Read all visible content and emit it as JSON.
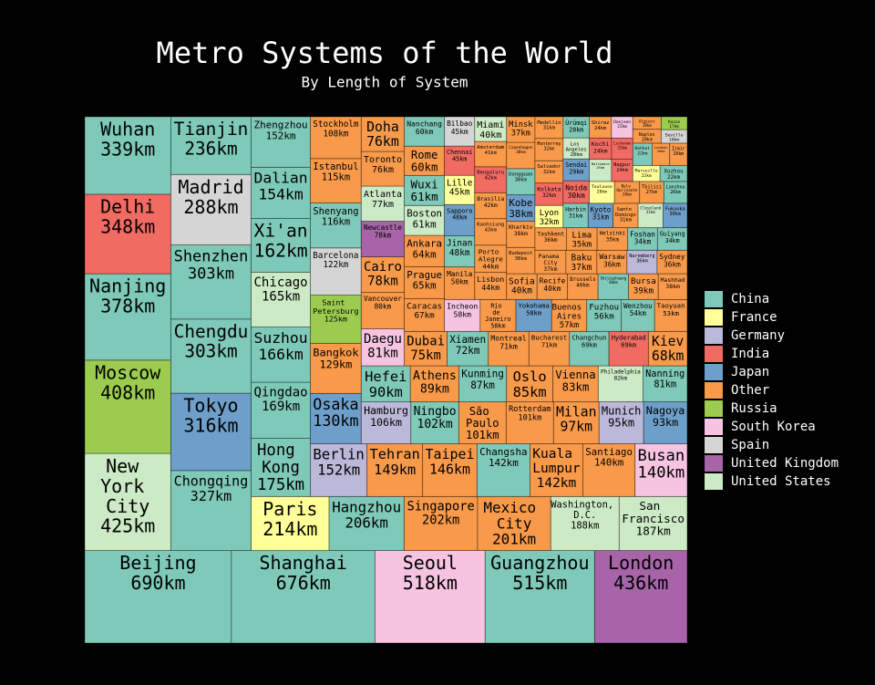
{
  "chart_data": {
    "type": "treemap",
    "title": "Metro Systems of the World",
    "subtitle": "By Length of System",
    "legend": [
      {
        "name": "China",
        "color": "#7fc9b9"
      },
      {
        "name": "France",
        "color": "#ffff99"
      },
      {
        "name": "Germany",
        "color": "#bcb8d9"
      },
      {
        "name": "India",
        "color": "#f26b63"
      },
      {
        "name": "Japan",
        "color": "#6e9fca"
      },
      {
        "name": "Other",
        "color": "#f99a4a"
      },
      {
        "name": "Russia",
        "color": "#9ccc4f"
      },
      {
        "name": "South Korea",
        "color": "#f6c4e0"
      },
      {
        "name": "Spain",
        "color": "#d5d5d5"
      },
      {
        "name": "United Kingdom",
        "color": "#a764a8"
      },
      {
        "name": "United States",
        "color": "#cdeac6"
      }
    ],
    "categories": [
      "Beijing",
      "Shanghai",
      "Seoul",
      "Guangzhou",
      "London",
      "New York City",
      "Moscow",
      "Nanjing",
      "Delhi",
      "Wuhan",
      "Chongqing",
      "Tokyo",
      "Chengdu",
      "Shenzhen",
      "Madrid",
      "Tianjin",
      "Paris",
      "Hangzhou",
      "Singapore",
      "Mexico City",
      "Washington, D.C.",
      "San Francisco",
      "Hong Kong",
      "Qingdao",
      "Suzhou",
      "Chicago",
      "Xi'an",
      "Dalian",
      "Zhengzhou",
      "Berlin",
      "Tehran",
      "Taipei",
      "Changsha",
      "Kuala Lumpur",
      "Santiago",
      "Busan",
      "Osaka",
      "Bangkok",
      "Saint Petersburg",
      "Barcelona",
      "Shenyang",
      "Istanbul",
      "Stockholm",
      "Hamburg",
      "Ningbo",
      "São Paulo",
      "Rotterdam",
      "Milan",
      "Munich",
      "Nagoya",
      "Hefei",
      "Athens",
      "Kunming",
      "Oslo",
      "Vienna",
      "Philadelphia",
      "Nanning",
      "Daegu",
      "Vancouver",
      "Cairo",
      "Newcastle",
      "Atlanta",
      "Toronto",
      "Doha",
      "Dubai",
      "Xiamen",
      "Montreal",
      "Bucharest",
      "Changchun",
      "Hyderabad",
      "Kiev",
      "Caracas",
      "Prague",
      "Ankara",
      "Boston",
      "Wuxi",
      "Rome",
      "Nanchang",
      "Incheon",
      "Rio de Janeiro",
      "Yokohama",
      "Buenos Aires",
      "Fuzhou",
      "Wenzhou",
      "Taoyuan",
      "Manila",
      "Jinan",
      "Sapporo",
      "Lille",
      "Chennai",
      "Bilbao",
      "Lisbon",
      "Porto Alegre",
      "Kaohsiung",
      "Brasilia",
      "Bengaluru",
      "Amsterdam",
      "Miami",
      "Sofia",
      "Recife",
      "Brussels",
      "Shijiazhuang",
      "Bursa",
      "Mashhad",
      "Budapest",
      "Kharkiv",
      "Kobe",
      "Dongguan",
      "Copenhagen",
      "Minsk",
      "Panama City",
      "Baku",
      "Warsaw",
      "Nuremberg",
      "Sydney",
      "Tashkent",
      "Lima",
      "Helsinki",
      "Foshan",
      "Guiyang",
      "Lyon",
      "Kolkata",
      "Salvador",
      "Monterrey",
      "Medellin",
      "Harbin",
      "Kyoto",
      "Santo Domingo",
      "Cleveland",
      "Fukuoka",
      "Noida",
      "Sendai",
      "Los Angeles",
      "Ürümqi",
      "Toulouse",
      "Belo Horizonte",
      "Tbilisi",
      "Lanzhou",
      "Baltimore",
      "Kochi",
      "Shiraz",
      "Nagpur",
      "Lucknow",
      "Daejeon",
      "Marseille",
      "Xuzhou",
      "Hohhot",
      "Isfahan",
      "Izmir",
      "Naples",
      "Algiers",
      "Seville",
      "Kazan"
    ],
    "values": [
      690,
      676,
      518,
      515,
      436,
      425,
      408,
      378,
      348,
      339,
      327,
      316,
      303,
      303,
      288,
      236,
      214,
      206,
      202,
      201,
      188,
      187,
      175,
      169,
      166,
      165,
      162,
      154,
      152,
      152,
      149,
      146,
      142,
      142,
      140,
      140,
      130,
      129,
      125,
      122,
      116,
      115,
      108,
      106,
      102,
      101,
      101,
      97,
      95,
      93,
      90,
      89,
      87,
      85,
      83,
      82,
      81,
      81,
      80,
      78,
      78,
      77,
      76,
      76,
      75,
      72,
      71,
      71,
      69,
      69,
      68,
      67,
      65,
      64,
      61,
      61,
      60,
      60,
      58,
      58,
      58,
      57,
      56,
      54,
      53,
      50,
      48,
      48,
      45,
      45,
      45,
      44,
      44,
      43,
      42,
      42,
      41,
      40,
      40,
      40,
      40,
      40,
      39,
      38,
      38,
      38,
      38,
      38,
      38,
      37,
      37,
      37,
      36,
      36,
      36,
      36,
      35,
      35,
      34,
      34,
      32,
      32,
      32,
      32,
      31,
      31,
      31,
      31,
      31,
      30,
      30,
      29,
      28,
      28,
      28,
      28,
      27,
      26,
      25,
      24,
      24,
      24,
      23,
      23,
      22,
      22,
      22,
      20,
      20,
      20,
      18,
      18,
      17
    ],
    "value_labels": [
      "690km",
      "676km",
      "518km",
      "515km",
      "436km",
      "425km",
      "408km",
      "378km",
      "348km",
      "339km",
      "327km",
      "316km",
      "303km",
      "303km",
      "288km",
      "236km",
      "214km",
      "206km",
      "202km",
      "201km",
      "188km",
      "187km",
      "175km",
      "169km",
      "166km",
      "165km",
      "162km",
      "154km",
      "152km",
      "152km",
      "149km",
      "146km",
      "142km",
      "142km",
      "140km",
      "140km",
      "130km",
      "129km",
      "125km",
      "122km",
      "116km",
      "115km",
      "108km",
      "106km",
      "102km",
      "101km",
      "101km",
      "97km",
      "95km",
      "93km",
      "90km",
      "89km",
      "87km",
      "85km",
      "83km",
      "82km",
      "81km",
      "81km",
      "80km",
      "78km",
      "78km",
      "77km",
      "76km",
      "76km",
      "75km",
      "72km",
      "71km",
      "71km",
      "69km",
      "69km",
      "68km",
      "67km",
      "65km",
      "64km",
      "61km",
      "61km",
      "60km",
      "60km",
      "58km",
      "58km",
      "58km",
      "57km",
      "56km",
      "54km",
      "53km",
      "50km",
      "48km",
      "48km",
      "45km",
      "45km",
      "45km",
      "44km",
      "44km",
      "43km",
      "42km",
      "42km",
      "41km",
      "40km",
      "40km",
      "40km",
      "40km",
      "40km",
      "39km",
      "38km",
      "38km",
      "38km",
      "38km",
      "38km",
      "38km",
      "37km",
      "37km",
      "37km",
      "36km",
      "36km",
      "36km",
      "36km",
      "35km",
      "35km",
      "34km",
      "34km",
      "32km",
      "32km",
      "32km",
      "32km",
      "31km",
      "31km",
      "31km",
      "31km",
      "31km",
      "30km",
      "30km",
      "29km",
      "28km",
      "28km",
      "28km",
      "28km",
      "27km",
      "26km",
      "25km",
      "24km",
      "24km",
      "24km",
      "23km",
      "23km",
      "22km",
      "22km",
      "22km",
      "20km",
      "20km",
      "20km",
      "18km",
      "18km",
      "17km"
    ],
    "groups": [
      "China",
      "China",
      "South Korea",
      "China",
      "United Kingdom",
      "United States",
      "Russia",
      "China",
      "India",
      "China",
      "China",
      "Japan",
      "China",
      "China",
      "Spain",
      "China",
      "France",
      "China",
      "Other",
      "Other",
      "United States",
      "United States",
      "China",
      "China",
      "China",
      "United States",
      "China",
      "China",
      "China",
      "Germany",
      "Other",
      "Other",
      "China",
      "Other",
      "Other",
      "South Korea",
      "Japan",
      "Other",
      "Russia",
      "Spain",
      "China",
      "Other",
      "Other",
      "Germany",
      "China",
      "Other",
      "Other",
      "Other",
      "Germany",
      "Japan",
      "China",
      "Other",
      "China",
      "Other",
      "Other",
      "United States",
      "China",
      "South Korea",
      "Other",
      "Other",
      "United Kingdom",
      "United States",
      "Other",
      "Other",
      "Other",
      "China",
      "Other",
      "Other",
      "China",
      "India",
      "Other",
      "Other",
      "Other",
      "Other",
      "United States",
      "China",
      "Other",
      "China",
      "South Korea",
      "Other",
      "Japan",
      "Other",
      "China",
      "China",
      "Other",
      "Other",
      "China",
      "Japan",
      "France",
      "India",
      "Spain",
      "Other",
      "Other",
      "Other",
      "Other",
      "India",
      "Other",
      "United States",
      "Other",
      "Other",
      "Other",
      "China",
      "Other",
      "Other",
      "Other",
      "Other",
      "Japan",
      "China",
      "Other",
      "Other",
      "Other",
      "Other",
      "Other",
      "Germany",
      "Other",
      "Other",
      "Other",
      "Other",
      "China",
      "China",
      "France",
      "India",
      "Other",
      "Other",
      "Other",
      "China",
      "Japan",
      "Other",
      "United States",
      "Japan",
      "India",
      "Japan",
      "United States",
      "China",
      "France",
      "Other",
      "Other",
      "China",
      "United States",
      "India",
      "Other",
      "India",
      "India",
      "South Korea",
      "France",
      "China",
      "China",
      "Other",
      "Other",
      "Other",
      "Other",
      "Spain",
      "Russia"
    ]
  }
}
